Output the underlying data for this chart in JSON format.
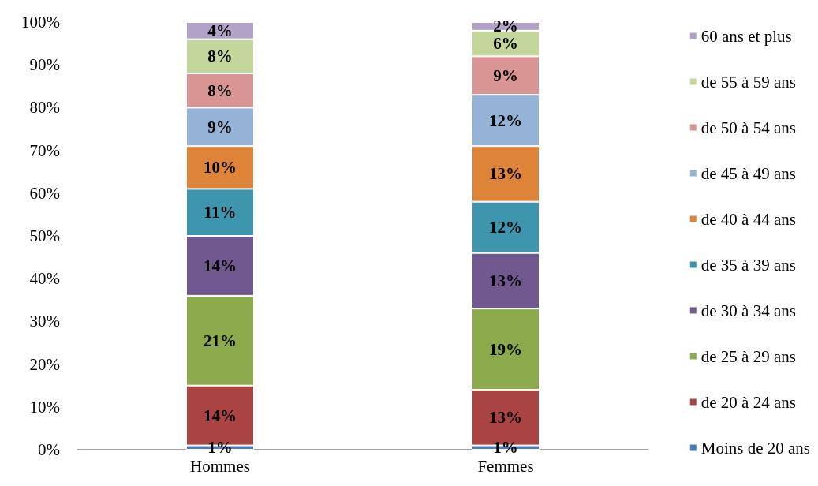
{
  "chart_data": {
    "type": "bar",
    "stacked": true,
    "categories": [
      "Hommes",
      "Femmes"
    ],
    "series": [
      {
        "name": "Moins de 20 ans",
        "color": "#4a7ebb",
        "values": [
          1,
          1
        ],
        "value_labels": [
          "1%",
          "1%"
        ]
      },
      {
        "name": "de 20 à 24 ans",
        "color": "#a94442",
        "values": [
          14,
          13
        ],
        "value_labels": [
          "14%",
          "13%"
        ]
      },
      {
        "name": "de 25 à 29 ans",
        "color": "#8aaa4b",
        "values": [
          21,
          19
        ],
        "value_labels": [
          "21%",
          "19%"
        ]
      },
      {
        "name": "de 30 à 34 ans",
        "color": "#71588f",
        "values": [
          14,
          13
        ],
        "value_labels": [
          "14%",
          "13%"
        ]
      },
      {
        "name": "de 35 à 39 ans",
        "color": "#3d96ad",
        "values": [
          11,
          12
        ],
        "value_labels": [
          "11%",
          "12%"
        ]
      },
      {
        "name": "de 40 à 44 ans",
        "color": "#dd8439",
        "values": [
          10,
          13
        ],
        "value_labels": [
          "10%",
          "13%"
        ]
      },
      {
        "name": "de 45 à 49 ans",
        "color": "#95b3d7",
        "values": [
          9,
          12
        ],
        "value_labels": [
          "9%",
          "12%"
        ]
      },
      {
        "name": "de 50 à 54 ans",
        "color": "#d99594",
        "values": [
          8,
          9
        ],
        "value_labels": [
          "8%",
          "9%"
        ]
      },
      {
        "name": "de 55 à 59 ans",
        "color": "#c3d69b",
        "values": [
          8,
          6
        ],
        "value_labels": [
          "8%",
          "6%"
        ]
      },
      {
        "name": "60 ans et plus",
        "color": "#b2a2c7",
        "values": [
          4,
          2
        ],
        "value_labels": [
          "4%",
          "2%"
        ]
      }
    ],
    "ylim": [
      0,
      100
    ],
    "yticks": [
      {
        "value": 0,
        "label": "0%"
      },
      {
        "value": 10,
        "label": "10%"
      },
      {
        "value": 20,
        "label": "20%"
      },
      {
        "value": 30,
        "label": "30%"
      },
      {
        "value": 40,
        "label": "40%"
      },
      {
        "value": 50,
        "label": "50%"
      },
      {
        "value": 60,
        "label": "60%"
      },
      {
        "value": 70,
        "label": "70%"
      },
      {
        "value": 80,
        "label": "80%"
      },
      {
        "value": 90,
        "label": "90%"
      },
      {
        "value": 100,
        "label": "100%"
      }
    ],
    "grid": false,
    "legend": "right"
  }
}
